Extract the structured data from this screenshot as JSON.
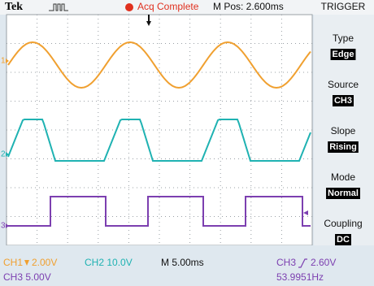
{
  "header": {
    "brand": "Tek",
    "status": "Acq Complete",
    "position": "M Pos: 2.600ms",
    "menu_title": "TRIGGER"
  },
  "menu": [
    {
      "label": "Type",
      "value": "Edge"
    },
    {
      "label": "Source",
      "value": "CH3"
    },
    {
      "label": "Slope",
      "value": "Rising"
    },
    {
      "label": "Mode",
      "value": "Normal"
    },
    {
      "label": "Coupling",
      "value": "DC"
    }
  ],
  "channel_markers": [
    "1",
    "2",
    "3"
  ],
  "footer": {
    "ch1": "CH1",
    "ch1_scale": "2.00V",
    "ch2": "CH2  10.0V",
    "timebase": "M 5.00ms",
    "trigger_source": "CH3",
    "trigger_level": "2.60V",
    "ch3": "CH3  5.00V",
    "frequency": "53.9951Hz"
  }
}
